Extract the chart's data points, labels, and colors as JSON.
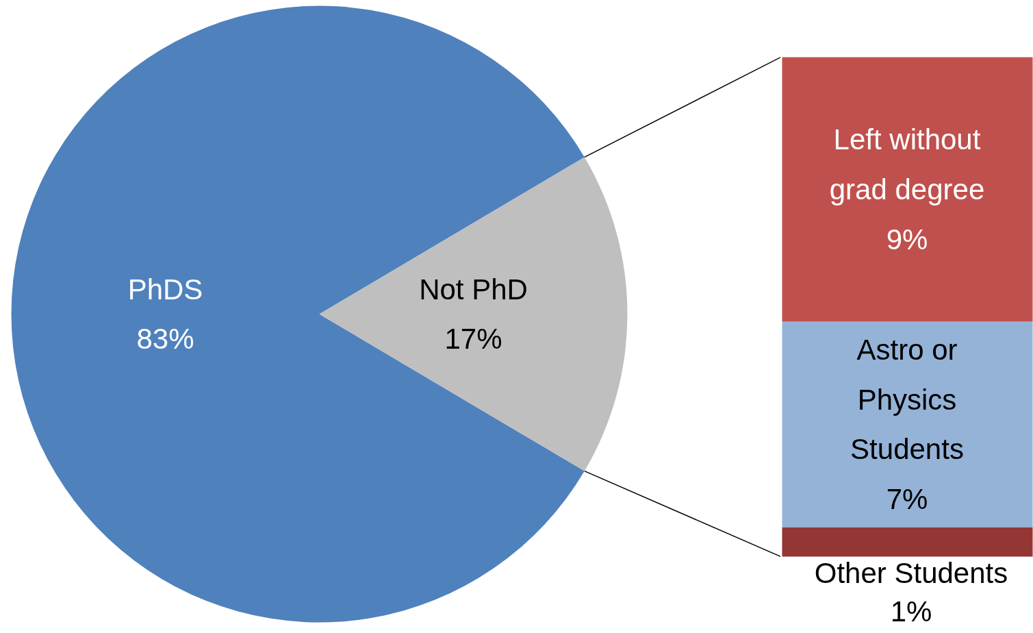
{
  "chart_data": [
    {
      "type": "pie",
      "categories": [
        "PhDS",
        "Not PhD"
      ],
      "values": [
        83,
        17
      ],
      "colors": [
        "#4f81bd",
        "#bfbfbf"
      ],
      "value_labels": [
        "83%",
        "17%"
      ]
    },
    {
      "type": "bar",
      "stacked": true,
      "categories": [
        null
      ],
      "series": [
        {
          "name": "Other Students",
          "color": "#943634",
          "values": [
            1
          ],
          "value_labels": [
            "1%"
          ]
        },
        {
          "name": "Astro or Physics Students",
          "color": "#95b3d7",
          "values": [
            7
          ],
          "value_labels": [
            "7%"
          ]
        },
        {
          "name": "Left without grad degree",
          "color": "#c0504d",
          "values": [
            9
          ],
          "value_labels": [
            "9%"
          ]
        }
      ]
    }
  ]
}
